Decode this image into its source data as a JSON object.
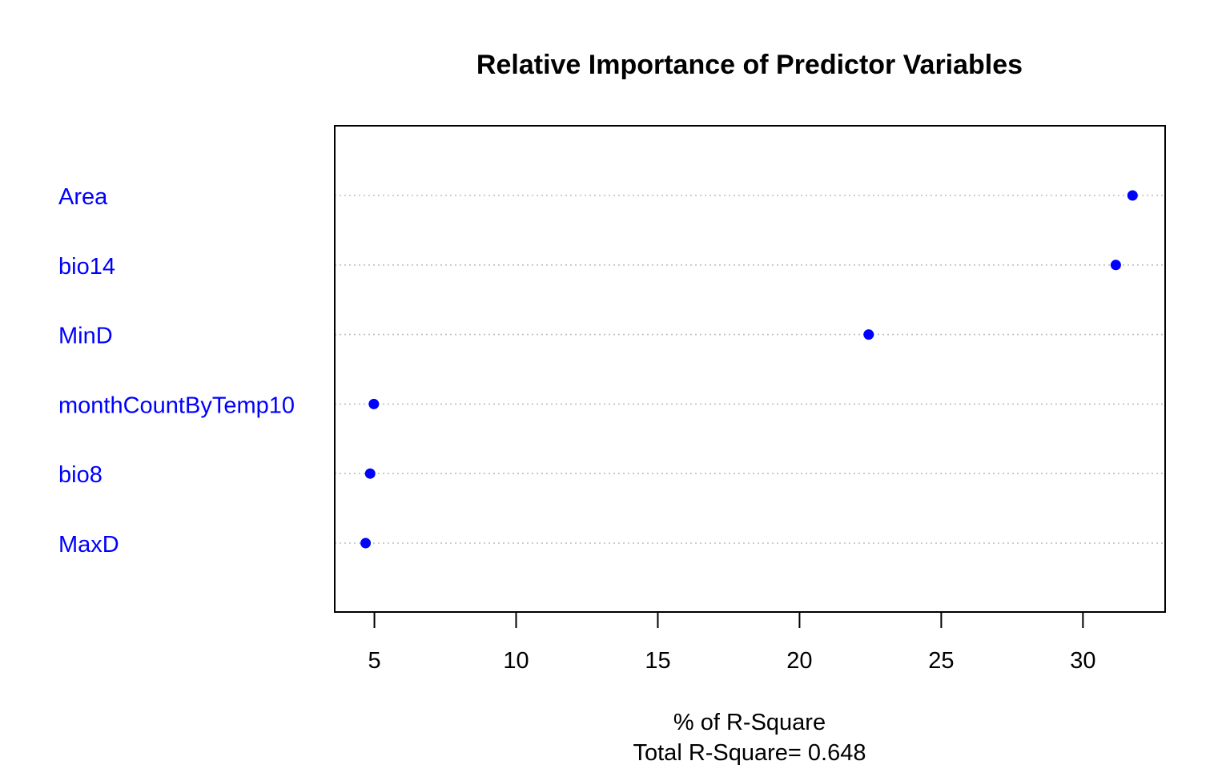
{
  "chart_data": {
    "type": "scatter",
    "title": "Relative Importance of Predictor Variables",
    "xlabel": "% of R-Square",
    "subtitle": "Total R-Square= 0.648",
    "categories": [
      "Area",
      "bio14",
      "MinD",
      "monthCountByTemp10",
      "bio8",
      "MaxD"
    ],
    "values": [
      31.75,
      31.16,
      22.44,
      4.98,
      4.85,
      4.69
    ],
    "xlim": [
      3.6,
      32.9
    ],
    "xticks": [
      5,
      10,
      15,
      20,
      25,
      30
    ],
    "xtick_labels": [
      "5",
      "10",
      "15",
      "20",
      "25",
      "30"
    ],
    "grid": "horizontal dotted guide lines per category",
    "colors": {
      "point": "#0000ff",
      "label": "#0000ff",
      "grid": "#bebebe",
      "axis": "#000000"
    }
  }
}
